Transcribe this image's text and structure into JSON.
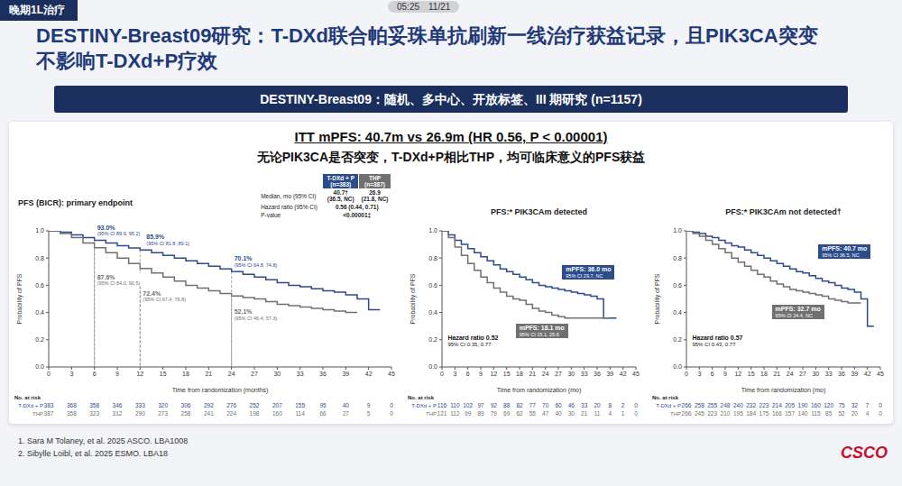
{
  "status_bar": [
    "05:25",
    "11/21"
  ],
  "tag": "晚期1L治疗",
  "title": "DESTINY-Breast09研究：T-DXd联合帕妥珠单抗刷新一线治疗获益记录，且PIK3CA突变不影响T-DXd+P疗效",
  "banner": "DESTINY-Breast09：随机、多中心、开放标签、III 期研究 (n=1157)",
  "headline": "ITT mPFS: 40.7m vs 26.9m (HR 0.56, P < 0.00001)",
  "subheadline": "无论PIK3CA是否突变，T-DXd+P相比THP，均可临床意义的PFS获益",
  "chart_data": [
    {
      "type": "line",
      "title": "PFS (BICR): primary endpoint",
      "x_label": "Time from randomization (months)",
      "y_label": "Probability of PFS",
      "x": [
        0,
        1.5,
        3,
        4.5,
        6,
        7.5,
        9,
        10.5,
        12,
        13.5,
        15,
        16.5,
        18,
        19.5,
        21,
        22.5,
        24,
        25.5,
        27,
        28.5,
        30,
        31.5,
        33,
        34.5,
        36,
        37.5,
        39,
        40.5,
        42,
        43.5
      ],
      "series": [
        {
          "name": "T-DXd + P",
          "color": "#2c4c8c",
          "line_style": "step",
          "values": [
            1,
            0.99,
            0.97,
            0.95,
            0.93,
            0.91,
            0.89,
            0.875,
            0.859,
            0.84,
            0.82,
            0.8,
            0.78,
            0.76,
            0.74,
            0.72,
            0.701,
            0.68,
            0.66,
            0.64,
            0.62,
            0.6,
            0.59,
            0.575,
            0.56,
            0.55,
            0.53,
            0.5,
            0.42,
            0.42
          ]
        },
        {
          "name": "THP",
          "color": "#707070",
          "line_style": "step",
          "values": [
            1,
            0.98,
            0.95,
            0.91,
            0.876,
            0.84,
            0.8,
            0.76,
            0.724,
            0.69,
            0.66,
            0.63,
            0.6,
            0.58,
            0.56,
            0.54,
            0.521,
            0.51,
            0.5,
            0.48,
            0.46,
            0.45,
            0.44,
            0.43,
            0.42,
            0.41,
            0.4,
            0.4,
            null,
            null
          ]
        }
      ],
      "xlim": [
        0,
        45
      ],
      "xticks": [
        0,
        3,
        6,
        9,
        12,
        15,
        18,
        21,
        24,
        27,
        30,
        33,
        36,
        39,
        42,
        45
      ],
      "ylim": [
        0,
        1
      ],
      "yticks": [
        {
          "value": 0,
          "label": "0.0"
        },
        0.2,
        0.4,
        0.6,
        0.8,
        {
          "value": 1,
          "label": "1.0"
        }
      ],
      "grid": false,
      "summary_table": {
        "columns": [
          {
            "series": "T-DXd + P",
            "n": "(n=383)"
          },
          {
            "series": "THP",
            "n": "(n=387)"
          }
        ],
        "rows": [
          {
            "label": "Median, mo (95% CI)",
            "cells": [
              [
                "40.7†",
                "(36.5, NC)"
              ],
              [
                "26.9",
                "(21.8, NC)"
              ]
            ]
          },
          {
            "label": "Hazard ratio (95% CI)",
            "cells": [
              [
                "0.56 (0.44, 0.71)"
              ]
            ]
          },
          {
            "label": "P-value",
            "cells": [
              [
                "<0.00001‡"
              ]
            ]
          }
        ]
      },
      "annotations": [
        {
          "series": "T-DXd + P",
          "x": 6,
          "y": 0.93,
          "label": "93.0%",
          "ci": "(95% CI 89.9, 95.2)"
        },
        {
          "series": "T-DXd + P",
          "x": 12,
          "y": 0.859,
          "label": "85.9%",
          "ci": "(95% CI 81.8, 89.1)"
        },
        {
          "series": "T-DXd + P",
          "x": 24,
          "y": 0.701,
          "label": "70.1%",
          "ci": "(95% CI 64.8, 74.8)"
        },
        {
          "series": "THP",
          "x": 6,
          "y": 0.876,
          "label": "87.6%",
          "ci": "(95% CI 84.0, 90.5)"
        },
        {
          "series": "THP",
          "x": 12,
          "y": 0.724,
          "label": "72.4%",
          "ci": "(95% CI 67.4, 76.8)"
        },
        {
          "series": "THP",
          "x": 24,
          "y": 0.521,
          "label": "52.1%",
          "ci": "(95% CI 46.4, 57.3)"
        }
      ],
      "at_risk": {
        "label": "No. at risk",
        "x": [
          0,
          3,
          6,
          9,
          12,
          15,
          18,
          21,
          24,
          27,
          30,
          33,
          36,
          39,
          42,
          45
        ],
        "rows": [
          {
            "name": "T-DXd + P",
            "values": [
              383,
              368,
              358,
              346,
              333,
              320,
              306,
              292,
              276,
              252,
              207,
              155,
              95,
              40,
              9,
              0
            ]
          },
          {
            "name": "THP",
            "values": [
              387,
              358,
              323,
              312,
              290,
              273,
              258,
              241,
              224,
              198,
              160,
              114,
              66,
              27,
              5,
              0
            ]
          }
        ]
      }
    },
    {
      "type": "line",
      "title": "PFS:* PIK3CAm detected",
      "x_label": "Time from randomization (mo)",
      "y_label": "Probability of PFS",
      "x": [
        0,
        1.5,
        3,
        4.5,
        6,
        7.5,
        9,
        10.5,
        12,
        13.5,
        15,
        16.5,
        18,
        19.5,
        21,
        22.5,
        24,
        25.5,
        27,
        28.5,
        30,
        31.5,
        33,
        34.5,
        36,
        37.5,
        39,
        40.5,
        42,
        43.5
      ],
      "series": [
        {
          "name": "T-DXd + P",
          "color": "#2c4c8c",
          "line_style": "step",
          "values": [
            1,
            0.97,
            0.93,
            0.9,
            0.87,
            0.84,
            0.81,
            0.78,
            0.75,
            0.72,
            0.7,
            0.68,
            0.66,
            0.64,
            0.62,
            0.6,
            0.59,
            0.58,
            0.57,
            0.56,
            0.55,
            0.54,
            0.53,
            0.52,
            0.5,
            0.36,
            0.36,
            0.36,
            null,
            null
          ]
        },
        {
          "name": "THP",
          "color": "#707070",
          "line_style": "step",
          "values": [
            1,
            0.95,
            0.88,
            0.82,
            0.76,
            0.71,
            0.66,
            0.62,
            0.58,
            0.55,
            0.52,
            0.5,
            0.49,
            0.46,
            0.43,
            0.41,
            0.4,
            0.38,
            0.37,
            0.36,
            0.36,
            0.36,
            0.36,
            0.36,
            0.36,
            0.36,
            0.36,
            null,
            null,
            null
          ]
        }
      ],
      "xlim": [
        0,
        45
      ],
      "xticks": [
        0,
        3,
        6,
        9,
        12,
        15,
        18,
        21,
        24,
        27,
        30,
        33,
        36,
        39,
        42,
        45
      ],
      "ylim": [
        0,
        1
      ],
      "yticks": [
        {
          "value": 0,
          "label": "0.0"
        },
        0.2,
        0.4,
        0.6,
        0.8,
        {
          "value": 1,
          "label": "1.0"
        }
      ],
      "grid": false,
      "medians": [
        {
          "series": "T-DXd + P",
          "label": "mPFS: 36.0 mo",
          "ci": "95% CI 29.7, NC"
        },
        {
          "series": "THP",
          "label": "mPFS: 18.1 mo",
          "ci": "95% CI 15.1, 25.6"
        }
      ],
      "hazard_ratio": {
        "label": "Hazard ratio 0.52",
        "ci": "95% CI 0.35, 0.77"
      },
      "at_risk": {
        "label": "No. at risk",
        "x": [
          0,
          3,
          6,
          9,
          12,
          15,
          18,
          21,
          24,
          27,
          30,
          33,
          36,
          39,
          42,
          45
        ],
        "rows": [
          {
            "name": "T-DXd + P",
            "values": [
              116,
              110,
              102,
              97,
              92,
              88,
              82,
              77,
              70,
              60,
              46,
              33,
              20,
              8,
              2,
              0
            ]
          },
          {
            "name": "THP",
            "values": [
              121,
              112,
              99,
              89,
              79,
              69,
              62,
              55,
              47,
              40,
              30,
              21,
              11,
              4,
              1,
              0
            ]
          }
        ]
      }
    },
    {
      "type": "line",
      "title": "PFS:* PIK3CAm not detected†",
      "x_label": "Time from randomization (mo)",
      "y_label": "Probability of PFS",
      "x": [
        0,
        1.5,
        3,
        4.5,
        6,
        7.5,
        9,
        10.5,
        12,
        13.5,
        15,
        16.5,
        18,
        19.5,
        21,
        22.5,
        24,
        25.5,
        27,
        28.5,
        30,
        31.5,
        33,
        34.5,
        36,
        37.5,
        39,
        40.5,
        42,
        43.5
      ],
      "series": [
        {
          "name": "T-DXd + P",
          "color": "#2c4c8c",
          "line_style": "step",
          "values": [
            1,
            0.99,
            0.98,
            0.96,
            0.95,
            0.93,
            0.91,
            0.89,
            0.88,
            0.86,
            0.84,
            0.82,
            0.8,
            0.78,
            0.76,
            0.74,
            0.72,
            0.7,
            0.69,
            0.67,
            0.65,
            0.63,
            0.62,
            0.6,
            0.58,
            0.57,
            0.55,
            0.5,
            0.3,
            0.3
          ]
        },
        {
          "name": "THP",
          "color": "#707070",
          "line_style": "step",
          "values": [
            1,
            0.98,
            0.96,
            0.93,
            0.9,
            0.87,
            0.84,
            0.8,
            0.77,
            0.74,
            0.71,
            0.68,
            0.66,
            0.63,
            0.61,
            0.59,
            0.57,
            0.56,
            0.55,
            0.54,
            0.53,
            0.52,
            0.5,
            0.49,
            0.48,
            0.47,
            0.47,
            0.47,
            null,
            null
          ]
        }
      ],
      "xlim": [
        0,
        45
      ],
      "xticks": [
        0,
        3,
        6,
        9,
        12,
        15,
        18,
        21,
        24,
        27,
        30,
        33,
        36,
        39,
        42,
        45
      ],
      "ylim": [
        0,
        1
      ],
      "yticks": [
        {
          "value": 0,
          "label": "0.0"
        },
        0.2,
        0.4,
        0.6,
        0.8,
        {
          "value": 1,
          "label": "1.0"
        }
      ],
      "grid": false,
      "medians": [
        {
          "series": "T-DXd + P",
          "label": "mPFS: 40.7 mo",
          "ci": "95% CI 36.5, NC"
        },
        {
          "series": "THP",
          "label": "mPFS: 32.7 mo",
          "ci": "95% CI 24.4, NC"
        }
      ],
      "hazard_ratio": {
        "label": "Hazard ratio 0.57",
        "ci": "95% CI 0.43, 0.77"
      },
      "at_risk": {
        "label": "No. at risk",
        "x": [
          0,
          3,
          6,
          9,
          12,
          15,
          18,
          21,
          24,
          27,
          30,
          33,
          36,
          39,
          42,
          45
        ],
        "rows": [
          {
            "name": "T-DXd + P",
            "values": [
              266,
              258,
              255,
              248,
              240,
              232,
              223,
              214,
              205,
              190,
              160,
              120,
              75,
              32,
              7,
              0
            ]
          },
          {
            "name": "THP",
            "values": [
              266,
              245,
              223,
              210,
              195,
              184,
              175,
              166,
              157,
              140,
              115,
              85,
              52,
              20,
              4,
              0
            ]
          }
        ]
      }
    }
  ],
  "footnotes": [
    "1. Sara M Tolaney, et al. 2025 ASCO. LBA1008",
    "2. Sibylle Loibl, et al. 2025 ESMO. LBA18"
  ],
  "logo": "CSCO"
}
